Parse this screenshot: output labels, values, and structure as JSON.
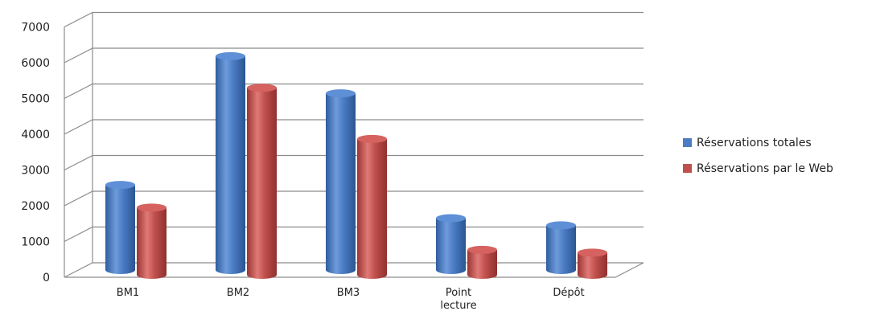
{
  "chart_data": {
    "type": "bar",
    "categories": [
      "BM1",
      "BM2",
      "BM3",
      "Point\nlecture",
      "Dépôt"
    ],
    "series": [
      {
        "name": "Réservations totales",
        "values": [
          2380,
          5980,
          4940,
          1450,
          1250
        ],
        "color": "#4a7bc4"
      },
      {
        "name": "Réservations par le Web",
        "values": [
          1880,
          5230,
          3800,
          700,
          620
        ],
        "color": "#c0504d"
      }
    ],
    "y_ticks": [
      "0",
      "1000",
      "2000",
      "3000",
      "4000",
      "5000",
      "6000",
      "7000"
    ],
    "ylim": [
      0,
      7000
    ],
    "grid": true,
    "legend_position": "right",
    "style": "3d-cylinder"
  }
}
